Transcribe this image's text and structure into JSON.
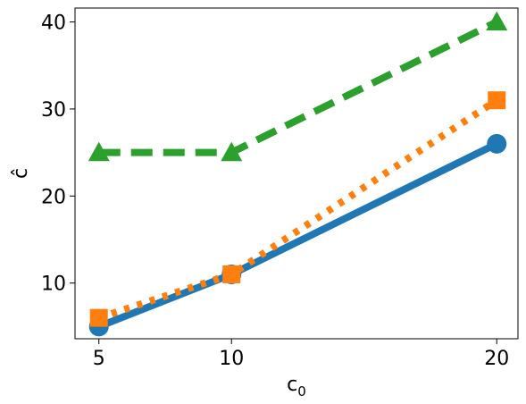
{
  "chart_data": {
    "type": "line",
    "xlabel": "c",
    "xlabel_sub": "0",
    "ylabel": "ĉ",
    "x": [
      5,
      10,
      20
    ],
    "xticks": [
      "5",
      "10",
      "20"
    ],
    "yticks": [
      "10",
      "20",
      "30",
      "40"
    ],
    "xlim": [
      4.1,
      20.8
    ],
    "ylim": [
      3.6,
      41.6
    ],
    "grid": false,
    "legend": "none",
    "series": [
      {
        "values": [
          5,
          11,
          26
        ],
        "color": "#1f77b4",
        "line_style": "solid",
        "marker": "circle"
      },
      {
        "values": [
          6,
          11,
          31
        ],
        "color": "#ff7f0e",
        "line_style": "dotted",
        "marker": "square"
      },
      {
        "values": [
          25,
          25,
          40
        ],
        "color": "#2ca02c",
        "line_style": "dashed",
        "marker": "triangle"
      }
    ]
  }
}
